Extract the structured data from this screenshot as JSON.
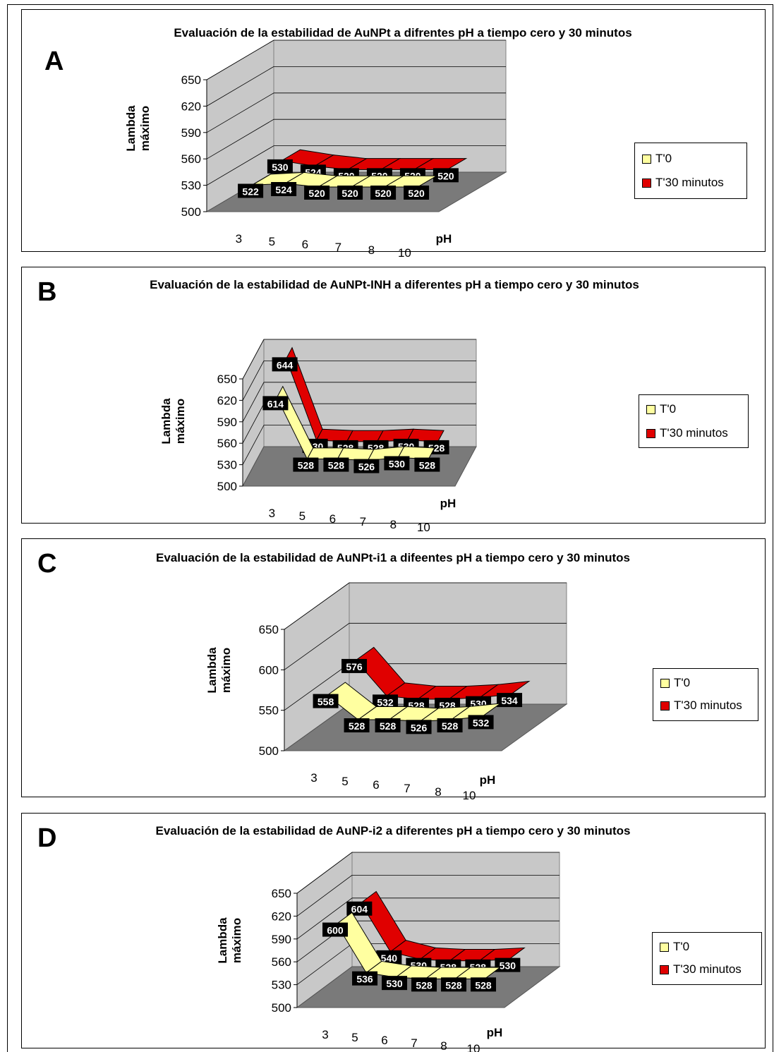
{
  "colors": {
    "t0_fill": "#ffffa0",
    "t30_fill": "#e00000",
    "wall": "#c8c8c8",
    "floor": "#7a7a7a",
    "label_bg": "#000000",
    "label_text": "#ffffff"
  },
  "chart_data": [
    {
      "type": "area",
      "panel_letter": "A",
      "title": "Evaluación de la estabilidad de AuNPt a difrentes pH a tiempo cero y 30 minutos",
      "ylabel": "Lambda máximo",
      "xlabel": "pH",
      "categories": [
        "3",
        "5",
        "6",
        "7",
        "8",
        "10"
      ],
      "yticks": [
        "650",
        "620",
        "590",
        "560",
        "530",
        "500"
      ],
      "ylim": [
        500,
        650
      ],
      "series": [
        {
          "name": "T'0",
          "values": [
            522,
            524,
            520,
            520,
            520,
            520
          ]
        },
        {
          "name": "T'30 minutos",
          "values": [
            530,
            524,
            520,
            520,
            520,
            520
          ]
        }
      ]
    },
    {
      "type": "area",
      "panel_letter": "B",
      "title": "Evaluación de la estabilidad de AuNPt-INH a diferentes pH a tiempo cero y 30 minutos",
      "ylabel": "Lambda máximo",
      "xlabel": "pH",
      "categories": [
        "3",
        "5",
        "6",
        "7",
        "8",
        "10"
      ],
      "yticks": [
        "650",
        "620",
        "590",
        "560",
        "530",
        "500"
      ],
      "ylim": [
        500,
        650
      ],
      "series": [
        {
          "name": "T'0",
          "values": [
            614,
            528,
            528,
            526,
            530,
            528
          ]
        },
        {
          "name": "T'30 minutos",
          "values": [
            644,
            530,
            528,
            528,
            530,
            528
          ]
        }
      ]
    },
    {
      "type": "area",
      "panel_letter": "C",
      "title": "Evaluación de la estabilidad de AuNPt-i1 a difeentes pH a tiempo cero y 30 minutos",
      "ylabel": "Lambda máximo",
      "xlabel": "pH",
      "categories": [
        "3",
        "5",
        "6",
        "7",
        "8",
        "10"
      ],
      "yticks": [
        "650",
        "600",
        "550",
        "500"
      ],
      "ylim": [
        500,
        650
      ],
      "series": [
        {
          "name": "T'0",
          "values": [
            558,
            528,
            528,
            526,
            528,
            532
          ]
        },
        {
          "name": "T'30 minutos",
          "values": [
            576,
            532,
            528,
            528,
            530,
            534
          ]
        }
      ]
    },
    {
      "type": "area",
      "panel_letter": "D",
      "title": "Evaluación de la estabilidad de AuNP-i2 a diferentes pH a tiempo cero y 30 minutos",
      "ylabel": "Lambda máximo",
      "xlabel": "pH",
      "categories": [
        "3",
        "5",
        "6",
        "7",
        "8",
        "10"
      ],
      "yticks": [
        "650",
        "620",
        "590",
        "560",
        "530",
        "500"
      ],
      "ylim": [
        500,
        650
      ],
      "series": [
        {
          "name": "T'0",
          "values": [
            600,
            536,
            530,
            528,
            528,
            528
          ]
        },
        {
          "name": "T'30 minutos",
          "values": [
            604,
            540,
            530,
            528,
            528,
            530
          ]
        }
      ]
    }
  ]
}
